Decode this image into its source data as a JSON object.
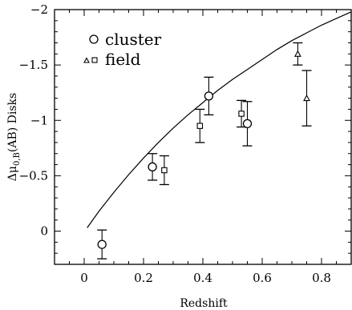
{
  "chart_data": {
    "type": "scatter",
    "xlabel": "Redshift",
    "ylabel": "Δμ0,B(AB) Disks",
    "ylabel_parts": {
      "delta_mu": "Δμ",
      "sub": "0,B",
      "rest": "(AB) Disks"
    },
    "xlim": [
      -0.1,
      0.9
    ],
    "ylim": [
      0.3,
      -2.0
    ],
    "y_inverted": true,
    "x_ticks": [
      0,
      0.2,
      0.4,
      0.6,
      0.8
    ],
    "x_tick_labels": [
      "0",
      "0.2",
      "0.4",
      "0.6",
      "0.8"
    ],
    "y_ticks": [
      0,
      -0.5,
      -1,
      -1.5,
      -2
    ],
    "y_tick_labels": [
      "0",
      "−0.5",
      "−1",
      "−1.5",
      "−2"
    ],
    "grid": false,
    "legend_placement": "top-left",
    "legend": {
      "entries": [
        {
          "marker": "circle",
          "label": "cluster"
        },
        {
          "marker": "triangle+square",
          "label": "field"
        }
      ]
    },
    "series": [
      {
        "marker": "circle",
        "points": [
          {
            "x": 0.06,
            "y": 0.12,
            "err": 0.13
          },
          {
            "x": 0.23,
            "y": -0.58,
            "err": 0.12
          },
          {
            "x": 0.42,
            "y": -1.22,
            "err": 0.17
          },
          {
            "x": 0.55,
            "y": -0.97,
            "err": 0.2
          }
        ]
      },
      {
        "marker": "square",
        "points": [
          {
            "x": 0.27,
            "y": -0.55,
            "err": 0.13
          },
          {
            "x": 0.39,
            "y": -0.95,
            "err": 0.15
          },
          {
            "x": 0.53,
            "y": -1.06,
            "err": 0.12
          }
        ]
      },
      {
        "marker": "triangle",
        "points": [
          {
            "x": 0.72,
            "y": -1.6,
            "err": 0.1
          },
          {
            "x": 0.75,
            "y": -1.2,
            "err": 0.25
          }
        ]
      }
    ],
    "model_curve": [
      [
        0.01,
        -0.03
      ],
      [
        0.05,
        -0.18
      ],
      [
        0.1,
        -0.35
      ],
      [
        0.15,
        -0.51
      ],
      [
        0.2,
        -0.66
      ],
      [
        0.25,
        -0.8
      ],
      [
        0.3,
        -0.93
      ],
      [
        0.35,
        -1.05
      ],
      [
        0.4,
        -1.16
      ],
      [
        0.45,
        -1.27
      ],
      [
        0.5,
        -1.37
      ],
      [
        0.55,
        -1.46
      ],
      [
        0.6,
        -1.55
      ],
      [
        0.65,
        -1.64
      ],
      [
        0.7,
        -1.72
      ],
      [
        0.75,
        -1.79
      ],
      [
        0.8,
        -1.86
      ],
      [
        0.85,
        -1.92
      ],
      [
        0.9,
        -1.98
      ]
    ]
  }
}
